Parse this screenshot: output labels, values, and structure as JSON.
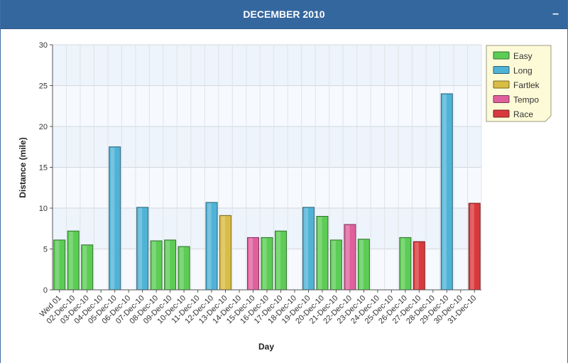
{
  "panel": {
    "title": "DECEMBER 2010",
    "collapse_label": "–"
  },
  "chart_data": {
    "type": "bar",
    "xlabel": "Day",
    "ylabel": "Distance (mile)",
    "ylim": [
      0,
      30
    ],
    "yticks": [
      0,
      5,
      10,
      15,
      20,
      25,
      30
    ],
    "grid": true,
    "legend_position": "top-right",
    "categories": [
      "Wed 01",
      "02-Dec-10",
      "03-Dec-10",
      "04-Dec-10",
      "05-Dec-10",
      "06-Dec-10",
      "07-Dec-10",
      "08-Dec-10",
      "09-Dec-10",
      "10-Dec-10",
      "11-Dec-10",
      "12-Dec-10",
      "13-Dec-10",
      "14-Dec-10",
      "15-Dec-10",
      "16-Dec-10",
      "17-Dec-10",
      "18-Dec-10",
      "19-Dec-10",
      "20-Dec-10",
      "21-Dec-10",
      "22-Dec-10",
      "23-Dec-10",
      "24-Dec-10",
      "25-Dec-10",
      "26-Dec-10",
      "27-Dec-10",
      "28-Dec-10",
      "29-Dec-10",
      "30-Dec-10",
      "31-Dec-10"
    ],
    "series": [
      {
        "name": "Easy",
        "color": "#5ccc55",
        "values": [
          6.1,
          7.2,
          5.5,
          null,
          null,
          null,
          null,
          6.0,
          6.1,
          5.3,
          null,
          null,
          null,
          null,
          null,
          6.4,
          7.2,
          null,
          null,
          9.0,
          6.1,
          null,
          6.2,
          null,
          null,
          6.4,
          null,
          null,
          null,
          null,
          null
        ]
      },
      {
        "name": "Long",
        "color": "#4fb3d6",
        "values": [
          null,
          null,
          null,
          null,
          17.5,
          null,
          10.1,
          null,
          null,
          null,
          null,
          10.7,
          null,
          null,
          null,
          null,
          null,
          null,
          10.1,
          null,
          null,
          null,
          null,
          null,
          null,
          null,
          null,
          null,
          24.0,
          null,
          null
        ]
      },
      {
        "name": "Fartlek",
        "color": "#d9bc45",
        "values": [
          null,
          null,
          null,
          null,
          null,
          null,
          null,
          null,
          null,
          null,
          null,
          null,
          9.1,
          null,
          null,
          null,
          null,
          null,
          null,
          null,
          null,
          null,
          null,
          null,
          null,
          null,
          null,
          null,
          null,
          null,
          null
        ]
      },
      {
        "name": "Tempo",
        "color": "#e0609e",
        "values": [
          null,
          null,
          null,
          null,
          null,
          null,
          null,
          null,
          null,
          null,
          null,
          null,
          null,
          null,
          6.4,
          null,
          null,
          null,
          null,
          null,
          null,
          8.0,
          null,
          null,
          null,
          null,
          null,
          null,
          null,
          null,
          null
        ]
      },
      {
        "name": "Race",
        "color": "#d9393c",
        "values": [
          null,
          null,
          null,
          null,
          null,
          null,
          null,
          null,
          null,
          null,
          null,
          null,
          null,
          null,
          null,
          null,
          null,
          null,
          null,
          null,
          null,
          null,
          null,
          null,
          null,
          null,
          5.9,
          null,
          null,
          null,
          10.6
        ]
      }
    ]
  }
}
